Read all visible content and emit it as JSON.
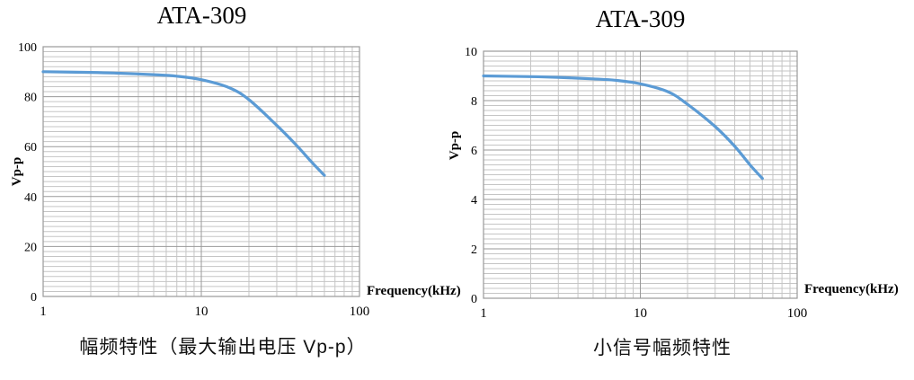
{
  "figure": {
    "background": "#ffffff",
    "grid_minor_color": "#c5c5c5",
    "grid_major_color": "#9a9a9a",
    "text_color": "#000000"
  },
  "chart_data": [
    {
      "type": "line",
      "title": "ATA-309",
      "caption": "幅频特性（最大输出电压 Vp-p）",
      "xlabel": "Frequency(kHz)",
      "ylabel": "Vp-p",
      "x_scale": "log",
      "xlim": [
        1,
        100
      ],
      "ylim": [
        0,
        100
      ],
      "x_ticks": [
        1,
        10,
        100
      ],
      "y_ticks": [
        0,
        20,
        40,
        60,
        80,
        100
      ],
      "y_minor_step": 2,
      "grid": "major+minor",
      "legend": "none",
      "line_color": "#5B9BD5",
      "series": [
        {
          "name": "Vp-p",
          "x": [
            1,
            2,
            3,
            5,
            7,
            10,
            15,
            20,
            30,
            40,
            50,
            60
          ],
          "y": [
            90,
            89.7,
            89.4,
            88.8,
            88.2,
            86.8,
            83.6,
            78.8,
            68.5,
            60.5,
            53.7,
            48.5
          ]
        }
      ]
    },
    {
      "type": "line",
      "title": "ATA-309",
      "caption": "小信号幅频特性",
      "xlabel": "Frequency(kHz)",
      "ylabel": "Vp-p",
      "x_scale": "log",
      "xlim": [
        1,
        100
      ],
      "ylim": [
        0,
        10
      ],
      "x_ticks": [
        1,
        10,
        100
      ],
      "y_ticks": [
        0,
        2,
        4,
        6,
        8,
        10
      ],
      "y_minor_step": 0.2,
      "grid": "major+minor",
      "legend": "none",
      "line_color": "#5B9BD5",
      "series": [
        {
          "name": "Vp-p",
          "x": [
            1,
            2,
            3,
            5,
            7,
            10,
            15,
            20,
            30,
            40,
            50,
            60
          ],
          "y": [
            9,
            8.97,
            8.94,
            8.88,
            8.82,
            8.68,
            8.36,
            7.85,
            6.95,
            6.15,
            5.4,
            4.85
          ]
        }
      ]
    }
  ]
}
